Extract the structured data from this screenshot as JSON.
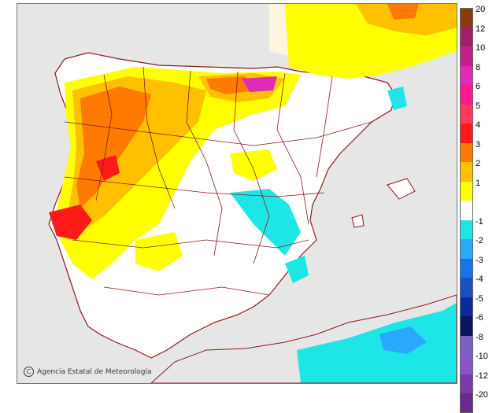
{
  "credit": {
    "symbol": "C",
    "text": "Agencia Estatal de Meteorología"
  },
  "legend": {
    "warm": [
      {
        "label": "20",
        "color": "#8b3a10"
      },
      {
        "label": "12",
        "color": "#a0206a"
      },
      {
        "label": "10",
        "color": "#c0208a"
      },
      {
        "label": "8",
        "color": "#e22ab8"
      },
      {
        "label": "6",
        "color": "#ff1a8c"
      },
      {
        "label": "5",
        "color": "#ff3b5c"
      },
      {
        "label": "4",
        "color": "#ff1a1a"
      },
      {
        "label": "3",
        "color": "#ff7a00"
      },
      {
        "label": "2",
        "color": "#ffc000"
      },
      {
        "label": "1",
        "color": "#ffff00"
      }
    ],
    "cold": [
      {
        "label": "-1",
        "color": "#1fe6e6"
      },
      {
        "label": "-2",
        "color": "#2aa8ff"
      },
      {
        "label": "-3",
        "color": "#1a73e8"
      },
      {
        "label": "-4",
        "color": "#1a4fc0"
      },
      {
        "label": "-5",
        "color": "#0d2a9a"
      },
      {
        "label": "-6",
        "color": "#0a1660"
      },
      {
        "label": "-8",
        "color": "#7b61c4"
      },
      {
        "label": "-10",
        "color": "#8a55c8"
      },
      {
        "label": "-12",
        "color": "#7a3aa8"
      },
      {
        "label": "-20",
        "color": "#6b2a8c"
      }
    ],
    "neutral_color": "#ffffff"
  },
  "colors": {
    "sea": "#e6e6e6",
    "land": "#ffffff",
    "border": "#8b1a1a",
    "france": "#fdf4e0"
  }
}
